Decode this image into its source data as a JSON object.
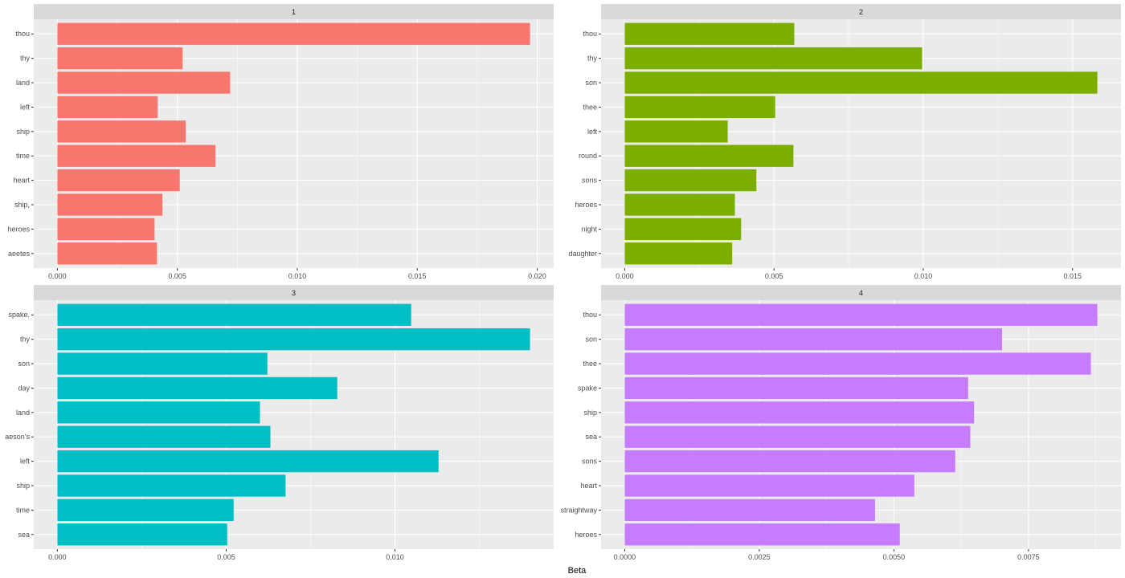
{
  "chart_data": {
    "type": "bar",
    "orientation": "horizontal",
    "facet": "wrap",
    "xlabel": "Beta",
    "ylabel": "",
    "grid": true,
    "legend": "none",
    "panels": [
      {
        "strip": "1",
        "color": "#F8766D",
        "categories": [
          "thou",
          "thy",
          "land",
          "left",
          "ship",
          "time",
          "heart",
          "ship,",
          "heroes",
          "aeetes"
        ],
        "values": [
          0.0197,
          0.00522,
          0.0072,
          0.00418,
          0.00535,
          0.00659,
          0.0051,
          0.00438,
          0.00405,
          0.00415
        ],
        "ticks": [
          0,
          0.005,
          0.01,
          0.015,
          0.02
        ],
        "tick_labels": [
          "0.000",
          "0.005",
          "0.010",
          "0.015",
          "0.020"
        ]
      },
      {
        "strip": "2",
        "color": "#7CAE00",
        "categories": [
          "thou",
          "thy",
          "son",
          "thee",
          "left",
          "round",
          "sons",
          "heroes",
          "night",
          "daughter"
        ],
        "values": [
          0.00568,
          0.00996,
          0.01583,
          0.00504,
          0.00345,
          0.00565,
          0.00441,
          0.00369,
          0.0039,
          0.0036
        ],
        "ticks": [
          0,
          0.005,
          0.01,
          0.015
        ],
        "tick_labels": [
          "0.000",
          "0.005",
          "0.010",
          "0.015"
        ]
      },
      {
        "strip": "3",
        "color": "#00BFC4",
        "categories": [
          "spake,",
          "thy",
          "son",
          "day",
          "land",
          "aeson's",
          "left",
          "ship",
          "time",
          "sea"
        ],
        "values": [
          0.01048,
          0.014,
          0.00622,
          0.00829,
          0.006,
          0.00631,
          0.01129,
          0.00676,
          0.00522,
          0.00503
        ],
        "ticks": [
          0,
          0.005,
          0.01
        ],
        "tick_labels": [
          "0.000",
          "0.005",
          "0.010"
        ]
      },
      {
        "strip": "4",
        "color": "#C77CFF",
        "categories": [
          "thou",
          "son",
          "thee",
          "spake",
          "ship",
          "sea",
          "sons",
          "heart",
          "straightway",
          "heroes"
        ],
        "values": [
          0.00878,
          0.00701,
          0.00866,
          0.00638,
          0.00649,
          0.00642,
          0.00614,
          0.00538,
          0.00465,
          0.00511
        ],
        "ticks": [
          0,
          0.0025,
          0.005,
          0.0075
        ],
        "tick_labels": [
          "0.0000",
          "0.0025",
          "0.0050",
          "0.0075"
        ]
      }
    ]
  }
}
